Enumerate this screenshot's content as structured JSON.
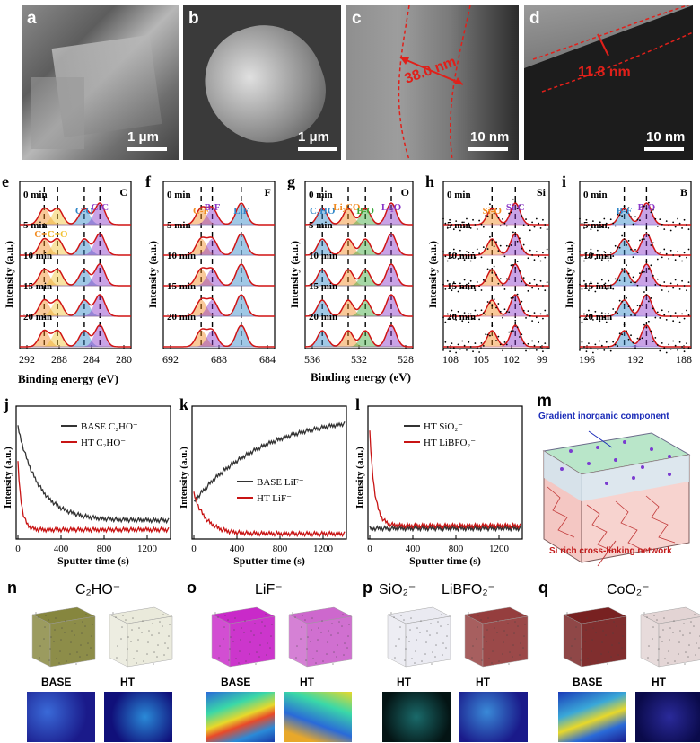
{
  "top": {
    "a": {
      "label": "a",
      "scale": "1 μm"
    },
    "b": {
      "label": "b",
      "scale": "1 μm"
    },
    "c": {
      "label": "c",
      "scale": "10 nm",
      "measure": "38.0 nm"
    },
    "d": {
      "label": "d",
      "scale": "10 nm",
      "measure": "11.8 nm"
    }
  },
  "xps": {
    "ylabel": "Intensity (a.u.)",
    "xlabel": "Binding energy (eV)",
    "times": [
      "0 min",
      "5 min",
      "10 min",
      "15 min",
      "20 min"
    ],
    "panels": [
      {
        "label": "e",
        "element": "C",
        "ticks": [
          "292",
          "288",
          "284",
          "280"
        ],
        "peaks": [
          "C=C",
          "C=O",
          "C-O",
          "C-C"
        ]
      },
      {
        "label": "f",
        "element": "F",
        "ticks": [
          "692",
          "688",
          "684"
        ],
        "peaks": [
          "C-F",
          "B-F",
          "LiF"
        ]
      },
      {
        "label": "g",
        "element": "O",
        "ticks": [
          "536",
          "532",
          "528"
        ],
        "peaks": [
          "C₂HO",
          "Li₂CO₃",
          "B-O",
          "Li₂O"
        ]
      },
      {
        "label": "h",
        "element": "Si",
        "ticks": [
          "108",
          "105",
          "102",
          "99"
        ],
        "peaks": [
          "Si-O",
          "Si-C"
        ]
      },
      {
        "label": "i",
        "element": "B",
        "ticks": [
          "196",
          "192",
          "188"
        ],
        "peaks": [
          "B-F",
          "B-O"
        ]
      }
    ]
  },
  "tof": {
    "ylabel": "Intensity (a.u.)",
    "xlabel": "Sputter time (s)",
    "xticks": [
      "0",
      "400",
      "800",
      "1200"
    ],
    "panels": [
      {
        "label": "j",
        "legend": [
          "BASE C₂HO⁻",
          "HT    C₂HO⁻"
        ]
      },
      {
        "label": "k",
        "legend": [
          "BASE LiF⁻",
          "HT      LiF⁻"
        ]
      },
      {
        "label": "l",
        "legend": [
          "HT SiO₂⁻",
          "HT  LiBFO₂⁻"
        ]
      }
    ]
  },
  "schematic": {
    "label": "m",
    "top_text": "Gradient inorganic component",
    "bottom_text": "Si rich cross-linking network"
  },
  "maps": [
    {
      "label": "n",
      "title": "C₂HO⁻",
      "left": "BASE",
      "right": "HT"
    },
    {
      "label": "o",
      "title": "LiF⁻",
      "left": "BASE",
      "right": "HT"
    },
    {
      "label": "p",
      "title": "SiO₂⁻",
      "title2": "LiBFO₂⁻",
      "left": "HT",
      "right": "HT"
    },
    {
      "label": "q",
      "title": "CoO₂⁻",
      "left": "BASE",
      "right": "HT"
    }
  ]
}
